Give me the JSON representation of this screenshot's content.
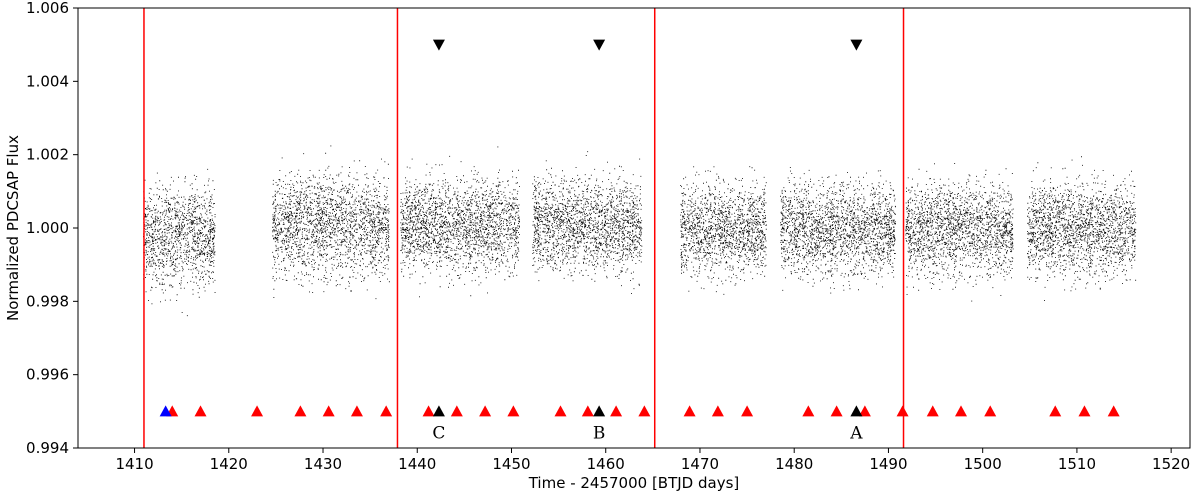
{
  "chart_data": {
    "type": "scatter",
    "title": "",
    "xlabel": "Time - 2457000 [BTJD days]",
    "ylabel": "Normalized PDCSAP Flux",
    "xlim": [
      1404,
      1522
    ],
    "ylim": [
      0.994,
      1.006
    ],
    "xticks": [
      1410,
      1420,
      1430,
      1440,
      1450,
      1460,
      1470,
      1480,
      1490,
      1500,
      1510,
      1520
    ],
    "yticks": [
      0.994,
      0.996,
      0.998,
      1.0,
      1.002,
      1.004,
      1.006
    ],
    "ytick_labels": [
      "0.994",
      "0.996",
      "0.998",
      "1.000",
      "1.002",
      "1.004",
      "1.006"
    ],
    "grid": false,
    "colors": {
      "points": "#000000",
      "sector_lines": "#ff0000",
      "red_markers": "#ff0000",
      "blue_marker": "#0000ff",
      "black_markers": "#000000"
    },
    "sector_boundaries": [
      1411.0,
      1437.9,
      1465.2,
      1491.6
    ],
    "flux_segments": [
      {
        "x_start": 1410.9,
        "x_end": 1418.5,
        "mean": 0.9998,
        "scatter": 0.0011
      },
      {
        "x_start": 1424.6,
        "x_end": 1437.0,
        "mean": 1.0001,
        "scatter": 0.0011
      },
      {
        "x_start": 1438.2,
        "x_end": 1450.8,
        "mean": 1.0001,
        "scatter": 0.001
      },
      {
        "x_start": 1452.2,
        "x_end": 1463.8,
        "mean": 1.0001,
        "scatter": 0.001
      },
      {
        "x_start": 1467.9,
        "x_end": 1477.0,
        "mean": 1.0,
        "scatter": 0.001
      },
      {
        "x_start": 1478.5,
        "x_end": 1490.7,
        "mean": 1.0,
        "scatter": 0.001
      },
      {
        "x_start": 1491.8,
        "x_end": 1503.2,
        "mean": 1.0,
        "scatter": 0.001
      },
      {
        "x_start": 1504.7,
        "x_end": 1516.2,
        "mean": 1.0,
        "scatter": 0.001
      }
    ],
    "red_triangles": [
      1414.0,
      1417.0,
      1423.0,
      1427.6,
      1430.6,
      1433.6,
      1436.7,
      1441.2,
      1444.2,
      1447.2,
      1450.2,
      1455.2,
      1458.1,
      1461.1,
      1464.1,
      1468.9,
      1471.9,
      1475.0,
      1481.5,
      1484.5,
      1487.5,
      1491.5,
      1494.7,
      1497.7,
      1500.8,
      1507.7,
      1510.8,
      1513.9
    ],
    "blue_triangles": [
      1413.3
    ],
    "black_up_triangles": [
      {
        "x": 1442.3,
        "label": "C"
      },
      {
        "x": 1459.3,
        "label": "B"
      },
      {
        "x": 1486.6,
        "label": "A"
      }
    ],
    "black_down_triangles": [
      1442.3,
      1459.3,
      1486.6
    ],
    "triangle_y": 0.995,
    "down_triangle_y": 1.005
  }
}
